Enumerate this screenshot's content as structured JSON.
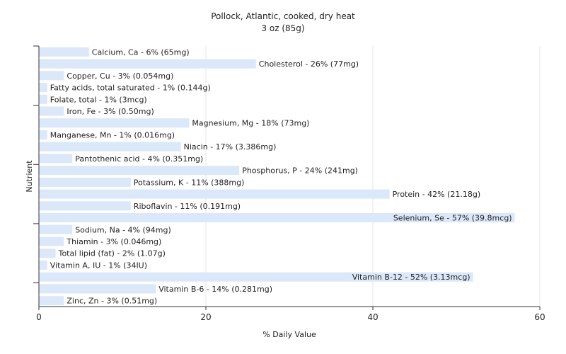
{
  "chart_data": {
    "type": "bar",
    "orientation": "horizontal",
    "title": "Pollock, Atlantic, cooked, dry heat",
    "subtitle": "3 oz (85g)",
    "xlabel": "% Daily Value",
    "ylabel": "Nutrient",
    "xlim": [
      0,
      60
    ],
    "xticks": [
      0,
      20,
      40,
      60
    ],
    "grid": true,
    "bar_color": "#dbe8f9",
    "categories": [
      "Calcium, Ca",
      "Cholesterol",
      "Copper, Cu",
      "Fatty acids, total saturated",
      "Folate, total",
      "Iron, Fe",
      "Magnesium, Mg",
      "Manganese, Mn",
      "Niacin",
      "Pantothenic acid",
      "Phosphorus, P",
      "Potassium, K",
      "Protein",
      "Riboflavin",
      "Selenium, Se",
      "Sodium, Na",
      "Thiamin",
      "Total lipid (fat)",
      "Vitamin A, IU",
      "Vitamin B-12",
      "Vitamin B-6",
      "Zinc, Zn"
    ],
    "values": [
      6,
      26,
      3,
      1,
      1,
      3,
      18,
      1,
      17,
      4,
      24,
      11,
      42,
      11,
      57,
      4,
      3,
      2,
      1,
      52,
      14,
      3
    ],
    "labels": [
      "Calcium, Ca - 6% (65mg)",
      "Cholesterol - 26% (77mg)",
      "Copper, Cu - 3% (0.054mg)",
      "Fatty acids, total saturated - 1% (0.144g)",
      "Folate, total - 1% (3mcg)",
      "Iron, Fe - 3% (0.50mg)",
      "Magnesium, Mg - 18% (73mg)",
      "Manganese, Mn - 1% (0.016mg)",
      "Niacin - 17% (3.386mg)",
      "Pantothenic acid - 4% (0.351mg)",
      "Phosphorus, P - 24% (241mg)",
      "Potassium, K - 11% (388mg)",
      "Protein - 42% (21.18g)",
      "Riboflavin - 11% (0.191mg)",
      "Selenium, Se - 57% (39.8mcg)",
      "Sodium, Na - 4% (94mg)",
      "Thiamin - 3% (0.046mg)",
      "Total lipid (fat) - 2% (1.07g)",
      "Vitamin A, IU - 1% (34IU)",
      "Vitamin B-12 - 52% (3.13mcg)",
      "Vitamin B-6 - 14% (0.281mg)",
      "Zinc, Zn - 3% (0.51mg)"
    ]
  }
}
